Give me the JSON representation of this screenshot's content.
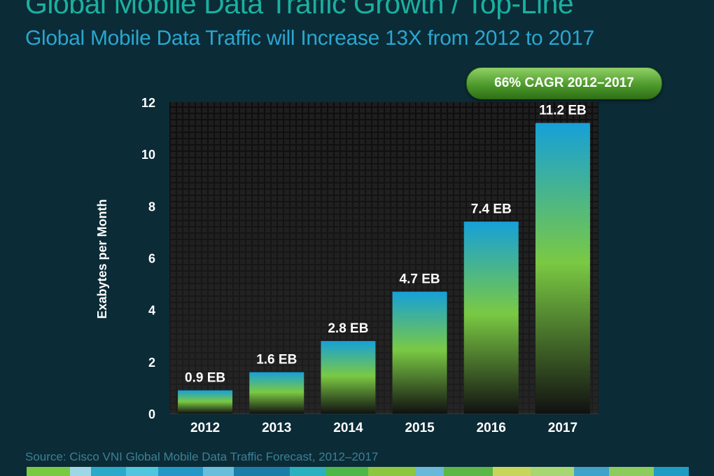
{
  "header": {
    "title": "Global Mobile Data Traffic Growth / Top-Line",
    "subtitle": "Global Mobile Data Traffic will Increase 13X from 2012 to 2017"
  },
  "badge": {
    "label": "66% CAGR 2012–2017"
  },
  "footer": {
    "source": "Source: Cisco VNI Global Mobile Data Traffic Forecast, 2012–2017"
  },
  "chart_data": {
    "type": "bar",
    "categories": [
      "2012",
      "2013",
      "2014",
      "2015",
      "2016",
      "2017"
    ],
    "values": [
      0.9,
      1.6,
      2.8,
      4.7,
      7.4,
      11.2
    ],
    "data_labels": [
      "0.9 EB",
      "1.6 EB",
      "2.8 EB",
      "4.7 EB",
      "7.4 EB",
      "11.2 EB"
    ],
    "ylabel": "Exabytes per Month",
    "xlabel": "",
    "ylim": [
      0,
      12
    ],
    "yticks": [
      0,
      2,
      4,
      6,
      8,
      10,
      12
    ],
    "grid": false,
    "legend": "none",
    "colors": {
      "bar_top": "#16a0d8",
      "bar_mid": "#7ac943",
      "bar_bottom": "#111111"
    }
  },
  "decor": {
    "stripe_colors": [
      "#7ac943",
      "#9ed8e6",
      "#2aa9c8",
      "#4fc6dd",
      "#2398c6",
      "#69bedb",
      "#1c7ea8",
      "#2ab0bf",
      "#4db848",
      "#8dc63f",
      "#6ab8d9",
      "#5bb746",
      "#c7d65a",
      "#a8d672",
      "#3fa2c8",
      "#8ccc5d",
      "#1f9cc1"
    ]
  }
}
